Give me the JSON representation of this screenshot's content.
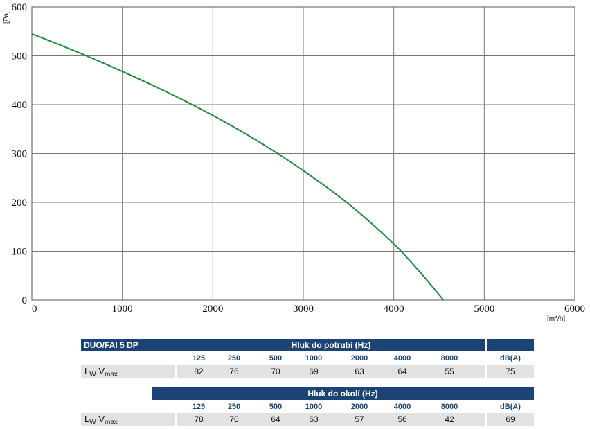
{
  "chart_data": {
    "type": "line",
    "title": "",
    "xlabel": "[m3/h]",
    "ylabel": "[Pa]",
    "xlim": [
      0,
      6000
    ],
    "ylim": [
      0,
      600
    ],
    "xticks": [
      0,
      1000,
      2000,
      3000,
      4000,
      5000,
      6000
    ],
    "yticks": [
      0,
      100,
      200,
      300,
      400,
      500,
      600
    ],
    "grid": true,
    "series": [
      {
        "color": "#1e8a3c",
        "x": [
          0,
          500,
          1000,
          1500,
          2000,
          2500,
          3000,
          3500,
          4000,
          4300,
          4550
        ],
        "y": [
          545,
          508,
          468,
          425,
          378,
          325,
          265,
          197,
          115,
          55,
          0
        ]
      }
    ]
  },
  "tables": {
    "model": "DUO/FAI 5 DP",
    "freq_headers": [
      "125",
      "250",
      "500",
      "1000",
      "2000",
      "4000",
      "8000"
    ],
    "dba_header": "dB(A)",
    "row_label_main": "L",
    "row_label_sub": "W",
    "row_label_main2": "V",
    "row_label_sub2": "max",
    "duct": {
      "title": "Hluk do potrubí (Hz)",
      "values": [
        "82",
        "76",
        "70",
        "69",
        "63",
        "64",
        "55"
      ],
      "dba": "75"
    },
    "surround": {
      "title": "Hluk do okolí (Hz)",
      "values": [
        "78",
        "70",
        "64",
        "63",
        "57",
        "56",
        "42"
      ],
      "dba": "69"
    }
  },
  "colors": {
    "header_bg": "#1c4375",
    "curve": "#1e8a3c",
    "row_bg": "#e2e2e2"
  }
}
